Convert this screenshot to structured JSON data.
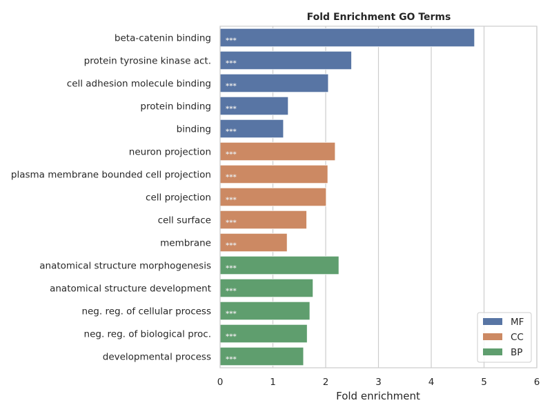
{
  "chart_data": {
    "type": "bar",
    "orientation": "horizontal",
    "title": "Fold Enrichment GO Terms",
    "xlabel": "Fold enrichment",
    "ylabel": "",
    "xlim": [
      0,
      6
    ],
    "xticks": [
      "0",
      "1",
      "2",
      "3",
      "4",
      "5",
      "6"
    ],
    "grid": "vertical",
    "legend_position": "bottom-right",
    "legend": [
      {
        "name": "MF",
        "color": "#5875A4"
      },
      {
        "name": "CC",
        "color": "#CC8963"
      },
      {
        "name": "BP",
        "color": "#5F9E6E"
      }
    ],
    "bars": [
      {
        "label": "beta-catenin binding",
        "value": 4.82,
        "group": "MF",
        "annotation": "***"
      },
      {
        "label": "protein tyrosine kinase act.",
        "value": 2.49,
        "group": "MF",
        "annotation": "***"
      },
      {
        "label": "cell adhesion molecule binding",
        "value": 2.05,
        "group": "MF",
        "annotation": "***"
      },
      {
        "label": "protein binding",
        "value": 1.29,
        "group": "MF",
        "annotation": "***"
      },
      {
        "label": "binding",
        "value": 1.2,
        "group": "MF",
        "annotation": "***"
      },
      {
        "label": "neuron projection",
        "value": 2.18,
        "group": "CC",
        "annotation": "***"
      },
      {
        "label": "plasma membrane bounded cell projection",
        "value": 2.04,
        "group": "CC",
        "annotation": "***"
      },
      {
        "label": "cell projection",
        "value": 2.01,
        "group": "CC",
        "annotation": "***"
      },
      {
        "label": "cell surface",
        "value": 1.64,
        "group": "CC",
        "annotation": "***"
      },
      {
        "label": "membrane",
        "value": 1.27,
        "group": "CC",
        "annotation": "***"
      },
      {
        "label": "anatomical structure morphogenesis",
        "value": 2.25,
        "group": "BP",
        "annotation": "***"
      },
      {
        "label": "anatomical structure development",
        "value": 1.76,
        "group": "BP",
        "annotation": "***"
      },
      {
        "label": "neg. reg. of cellular process",
        "value": 1.7,
        "group": "BP",
        "annotation": "***"
      },
      {
        "label": "neg. reg. of biological proc.",
        "value": 1.65,
        "group": "BP",
        "annotation": "***"
      },
      {
        "label": "developmental process",
        "value": 1.58,
        "group": "BP",
        "annotation": "***"
      }
    ]
  }
}
